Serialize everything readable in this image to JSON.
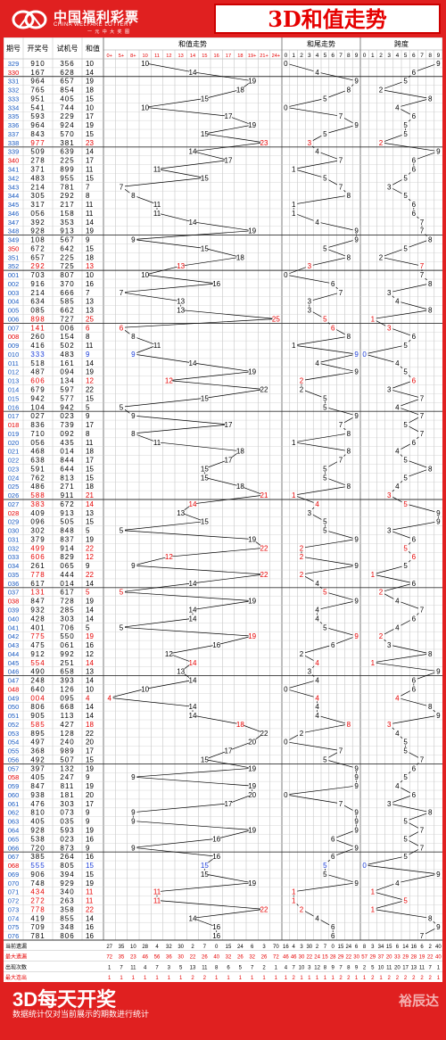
{
  "header": {
    "logo_cn": "中国福利彩票",
    "logo_en": "CHINA WELFARE LOTTERY",
    "logo_tag": "一 元 中 大 奖 图",
    "title": "3D和值走势"
  },
  "footer": {
    "slogan": "3D每天开奖",
    "note": "数据统计仅对当前展示的期数进行统计",
    "brand": "裕辰达"
  },
  "colors": {
    "red": "#e60000",
    "blue": "#1a3cd8",
    "accent": "#e02020"
  },
  "columns": {
    "issue": "期号",
    "winning": "开奖号",
    "trial": "试机号",
    "sum": "和值",
    "sum_trend": "和值走势",
    "tail_trend": "和尾走势",
    "span": "跨度"
  },
  "sum_buckets": [
    "0+",
    "5+",
    "8+",
    "10",
    "11",
    "12",
    "13",
    "14",
    "15",
    "16",
    "17",
    "18",
    "19+",
    "21+",
    "24+"
  ],
  "stats_labels": [
    "当前遗漏",
    "最大遗漏",
    "出现次数",
    "最大连出"
  ],
  "stats": {
    "sum": [
      [
        "27",
        "35",
        "10",
        "28",
        "4",
        "32",
        "30",
        "2",
        "7",
        "0",
        "15",
        "24",
        "6",
        "3",
        "70"
      ],
      [
        "72",
        "35",
        "23",
        "46",
        "56",
        "36",
        "30",
        "22",
        "26",
        "40",
        "32",
        "26",
        "32",
        "26",
        "72"
      ],
      [
        "1",
        "7",
        "11",
        "4",
        "7",
        "3",
        "5",
        "13",
        "11",
        "8",
        "6",
        "5",
        "7",
        "2",
        "1"
      ],
      [
        "1",
        "1",
        "1",
        "1",
        "1",
        "1",
        "1",
        "2",
        "2",
        "1",
        "1",
        "1",
        "1",
        "1",
        "1"
      ]
    ],
    "tail": [
      [
        "16",
        "4",
        "3",
        "30",
        "2",
        "7",
        "0",
        "15",
        "24",
        "6"
      ],
      [
        "46",
        "46",
        "30",
        "22",
        "24",
        "15",
        "28",
        "29",
        "22",
        "30"
      ],
      [
        "4",
        "7",
        "10",
        "3",
        "12",
        "8",
        "9",
        "7",
        "8",
        "9"
      ],
      [
        "1",
        "2",
        "1",
        "1",
        "1",
        "1",
        "1",
        "2",
        "2",
        "1"
      ]
    ],
    "span": [
      [
        "8",
        "3",
        "34",
        "15",
        "6",
        "14",
        "16",
        "6",
        "2",
        "40"
      ],
      [
        "57",
        "29",
        "37",
        "20",
        "33",
        "29",
        "28",
        "19",
        "22",
        "40"
      ],
      [
        "2",
        "5",
        "10",
        "11",
        "20",
        "17",
        "13",
        "11",
        "7",
        "1"
      ],
      [
        "1",
        "2",
        "1",
        "2",
        "2",
        "2",
        "2",
        "2",
        "2",
        "1"
      ]
    ]
  },
  "chart_data": {
    "type": "line",
    "title": "3D和值走势",
    "x_label": "期号",
    "series": [
      {
        "name": "和值走势",
        "unit": "和值"
      },
      {
        "name": "和尾走势",
        "unit": "和尾"
      },
      {
        "name": "跨度",
        "unit": "跨度"
      }
    ],
    "rows": [
      {
        "issue": "329",
        "draw": "910",
        "trial": "356",
        "sum": 10,
        "tail": 0,
        "span": 9
      },
      {
        "issue": "330",
        "draw": "167",
        "trial": "628",
        "sum": 14,
        "tail": 4,
        "span": 6
      },
      {
        "issue": "331",
        "draw": "964",
        "trial": "657",
        "sum": 19,
        "tail": 9,
        "span": 5
      },
      {
        "issue": "332",
        "draw": "765",
        "trial": "854",
        "sum": 18,
        "tail": 8,
        "span": 2
      },
      {
        "issue": "333",
        "draw": "951",
        "trial": "405",
        "sum": 15,
        "tail": 5,
        "span": 8
      },
      {
        "issue": "334",
        "draw": "541",
        "trial": "744",
        "sum": 10,
        "tail": 0,
        "span": 4
      },
      {
        "issue": "335",
        "draw": "593",
        "trial": "229",
        "sum": 17,
        "tail": 7,
        "span": 6
      },
      {
        "issue": "336",
        "draw": "964",
        "trial": "924",
        "sum": 19,
        "tail": 9,
        "span": 5
      },
      {
        "issue": "337",
        "draw": "843",
        "trial": "570",
        "sum": 15,
        "tail": 5,
        "span": 5
      },
      {
        "issue": "338",
        "draw": "977",
        "trial": "381",
        "sum": 23,
        "tail": 3,
        "span": 2
      },
      {
        "issue": "339",
        "draw": "509",
        "trial": "639",
        "sum": 14,
        "tail": 4,
        "span": 9
      },
      {
        "issue": "340",
        "draw": "278",
        "trial": "225",
        "sum": 17,
        "tail": 7,
        "span": 6
      },
      {
        "issue": "341",
        "draw": "371",
        "trial": "899",
        "sum": 11,
        "tail": 1,
        "span": 6
      },
      {
        "issue": "342",
        "draw": "483",
        "trial": "955",
        "sum": 15,
        "tail": 5,
        "span": 5
      },
      {
        "issue": "343",
        "draw": "214",
        "trial": "781",
        "sum": 7,
        "tail": 7,
        "span": 3
      },
      {
        "issue": "344",
        "draw": "305",
        "trial": "292",
        "sum": 8,
        "tail": 8,
        "span": 5
      },
      {
        "issue": "345",
        "draw": "317",
        "trial": "217",
        "sum": 11,
        "tail": 1,
        "span": 6
      },
      {
        "issue": "346",
        "draw": "056",
        "trial": "158",
        "sum": 11,
        "tail": 1,
        "span": 6
      },
      {
        "issue": "347",
        "draw": "392",
        "trial": "353",
        "sum": 14,
        "tail": 4,
        "span": 7
      },
      {
        "issue": "348",
        "draw": "928",
        "trial": "913",
        "sum": 19,
        "tail": 9,
        "span": 7
      },
      {
        "issue": "349",
        "draw": "108",
        "trial": "567",
        "sum": 9,
        "tail": 9,
        "span": 8
      },
      {
        "issue": "350",
        "draw": "672",
        "trial": "642",
        "sum": 15,
        "tail": 5,
        "span": 5
      },
      {
        "issue": "351",
        "draw": "657",
        "trial": "225",
        "sum": 18,
        "tail": 8,
        "span": 2
      },
      {
        "issue": "352",
        "draw": "292",
        "trial": "725",
        "sum": 13,
        "tail": 3,
        "span": 7
      },
      {
        "issue": "001",
        "draw": "703",
        "trial": "807",
        "sum": 10,
        "tail": 0,
        "span": 7
      },
      {
        "issue": "002",
        "draw": "916",
        "trial": "370",
        "sum": 16,
        "tail": 6,
        "span": 8
      },
      {
        "issue": "003",
        "draw": "214",
        "trial": "666",
        "sum": 7,
        "tail": 7,
        "span": 3
      },
      {
        "issue": "004",
        "draw": "634",
        "trial": "585",
        "sum": 13,
        "tail": 3,
        "span": 4
      },
      {
        "issue": "005",
        "draw": "085",
        "trial": "662",
        "sum": 13,
        "tail": 3,
        "span": 8
      },
      {
        "issue": "006",
        "draw": "898",
        "trial": "727",
        "sum": 25,
        "tail": 5,
        "span": 1
      },
      {
        "issue": "007",
        "draw": "141",
        "trial": "006",
        "sum": 6,
        "tail": 6,
        "span": 3
      },
      {
        "issue": "008",
        "draw": "260",
        "trial": "154",
        "sum": 8,
        "tail": 8,
        "span": 6
      },
      {
        "issue": "009",
        "draw": "416",
        "trial": "502",
        "sum": 11,
        "tail": 1,
        "span": 5
      },
      {
        "issue": "010",
        "draw": "333",
        "trial": "483",
        "sum": 9,
        "tail": 9,
        "span": 0
      },
      {
        "issue": "011",
        "draw": "518",
        "trial": "161",
        "sum": 14,
        "tail": 4,
        "span": 4
      },
      {
        "issue": "012",
        "draw": "487",
        "trial": "094",
        "sum": 19,
        "tail": 9,
        "span": 5
      },
      {
        "issue": "013",
        "draw": "606",
        "trial": "134",
        "sum": 12,
        "tail": 2,
        "span": 6
      },
      {
        "issue": "014",
        "draw": "679",
        "trial": "597",
        "sum": 22,
        "tail": 2,
        "span": 3
      },
      {
        "issue": "015",
        "draw": "942",
        "trial": "577",
        "sum": 15,
        "tail": 5,
        "span": 7
      },
      {
        "issue": "016",
        "draw": "104",
        "trial": "942",
        "sum": 5,
        "tail": 5,
        "span": 4
      },
      {
        "issue": "017",
        "draw": "027",
        "trial": "023",
        "sum": 9,
        "tail": 9,
        "span": 7
      },
      {
        "issue": "018",
        "draw": "836",
        "trial": "739",
        "sum": 17,
        "tail": 7,
        "span": 5
      },
      {
        "issue": "019",
        "draw": "710",
        "trial": "092",
        "sum": 8,
        "tail": 8,
        "span": 7
      },
      {
        "issue": "020",
        "draw": "056",
        "trial": "435",
        "sum": 11,
        "tail": 1,
        "span": 6
      },
      {
        "issue": "021",
        "draw": "468",
        "trial": "014",
        "sum": 18,
        "tail": 8,
        "span": 4
      },
      {
        "issue": "022",
        "draw": "638",
        "trial": "844",
        "sum": 17,
        "tail": 7,
        "span": 5
      },
      {
        "issue": "023",
        "draw": "591",
        "trial": "644",
        "sum": 15,
        "tail": 5,
        "span": 8
      },
      {
        "issue": "024",
        "draw": "762",
        "trial": "813",
        "sum": 15,
        "tail": 5,
        "span": 5
      },
      {
        "issue": "025",
        "draw": "486",
        "trial": "271",
        "sum": 18,
        "tail": 8,
        "span": 4
      },
      {
        "issue": "026",
        "draw": "588",
        "trial": "911",
        "sum": 21,
        "tail": 1,
        "span": 3
      },
      {
        "issue": "027",
        "draw": "383",
        "trial": "672",
        "sum": 14,
        "tail": 4,
        "span": 5
      },
      {
        "issue": "028",
        "draw": "409",
        "trial": "913",
        "sum": 13,
        "tail": 3,
        "span": 9
      },
      {
        "issue": "029",
        "draw": "096",
        "trial": "505",
        "sum": 15,
        "tail": 5,
        "span": 9
      },
      {
        "issue": "030",
        "draw": "302",
        "trial": "848",
        "sum": 5,
        "tail": 5,
        "span": 3
      },
      {
        "issue": "031",
        "draw": "379",
        "trial": "837",
        "sum": 19,
        "tail": 9,
        "span": 6
      },
      {
        "issue": "032",
        "draw": "499",
        "trial": "914",
        "sum": 22,
        "tail": 2,
        "span": 5
      },
      {
        "issue": "033",
        "draw": "606",
        "trial": "829",
        "sum": 12,
        "tail": 2,
        "span": 6
      },
      {
        "issue": "034",
        "draw": "261",
        "trial": "065",
        "sum": 9,
        "tail": 9,
        "span": 5
      },
      {
        "issue": "035",
        "draw": "778",
        "trial": "444",
        "sum": 22,
        "tail": 2,
        "span": 1
      },
      {
        "issue": "036",
        "draw": "617",
        "trial": "014",
        "sum": 14,
        "tail": 4,
        "span": 6
      },
      {
        "issue": "037",
        "draw": "131",
        "trial": "617",
        "sum": 5,
        "tail": 5,
        "span": 2
      },
      {
        "issue": "038",
        "draw": "847",
        "trial": "728",
        "sum": 19,
        "tail": 9,
        "span": 4
      },
      {
        "issue": "039",
        "draw": "932",
        "trial": "285",
        "sum": 14,
        "tail": 4,
        "span": 7
      },
      {
        "issue": "040",
        "draw": "428",
        "trial": "303",
        "sum": 14,
        "tail": 4,
        "span": 6
      },
      {
        "issue": "041",
        "draw": "401",
        "trial": "706",
        "sum": 5,
        "tail": 5,
        "span": 4
      },
      {
        "issue": "042",
        "draw": "775",
        "trial": "550",
        "sum": 19,
        "tail": 9,
        "span": 2
      },
      {
        "issue": "043",
        "draw": "475",
        "trial": "061",
        "sum": 16,
        "tail": 6,
        "span": 3
      },
      {
        "issue": "044",
        "draw": "912",
        "trial": "992",
        "sum": 12,
        "tail": 2,
        "span": 8
      },
      {
        "issue": "045",
        "draw": "554",
        "trial": "251",
        "sum": 14,
        "tail": 4,
        "span": 1
      },
      {
        "issue": "046",
        "draw": "490",
        "trial": "658",
        "sum": 13,
        "tail": 3,
        "span": 9
      },
      {
        "issue": "047",
        "draw": "248",
        "trial": "393",
        "sum": 14,
        "tail": 4,
        "span": 6
      },
      {
        "issue": "048",
        "draw": "640",
        "trial": "126",
        "sum": 10,
        "tail": 0,
        "span": 6
      },
      {
        "issue": "049",
        "draw": "004",
        "trial": "095",
        "sum": 4,
        "tail": 4,
        "span": 4
      },
      {
        "issue": "050",
        "draw": "806",
        "trial": "668",
        "sum": 14,
        "tail": 4,
        "span": 8
      },
      {
        "issue": "051",
        "draw": "905",
        "trial": "113",
        "sum": 14,
        "tail": 4,
        "span": 9
      },
      {
        "issue": "052",
        "draw": "585",
        "trial": "427",
        "sum": 18,
        "tail": 8,
        "span": 3
      },
      {
        "issue": "053",
        "draw": "895",
        "trial": "128",
        "sum": 22,
        "tail": 2,
        "span": 4
      },
      {
        "issue": "054",
        "draw": "497",
        "trial": "240",
        "sum": 20,
        "tail": 0,
        "span": 5
      },
      {
        "issue": "055",
        "draw": "368",
        "trial": "989",
        "sum": 17,
        "tail": 7,
        "span": 5
      },
      {
        "issue": "056",
        "draw": "492",
        "trial": "507",
        "sum": 15,
        "tail": 5,
        "span": 7
      },
      {
        "issue": "057",
        "draw": "397",
        "trial": "132",
        "sum": 19,
        "tail": 9,
        "span": 6
      },
      {
        "issue": "058",
        "draw": "405",
        "trial": "247",
        "sum": 9,
        "tail": 9,
        "span": 5
      },
      {
        "issue": "059",
        "draw": "847",
        "trial": "811",
        "sum": 19,
        "tail": 9,
        "span": 4
      },
      {
        "issue": "060",
        "draw": "938",
        "trial": "181",
        "sum": 20,
        "tail": 0,
        "span": 6
      },
      {
        "issue": "061",
        "draw": "476",
        "trial": "303",
        "sum": 17,
        "tail": 7,
        "span": 3
      },
      {
        "issue": "062",
        "draw": "810",
        "trial": "073",
        "sum": 9,
        "tail": 9,
        "span": 8
      },
      {
        "issue": "063",
        "draw": "405",
        "trial": "035",
        "sum": 9,
        "tail": 9,
        "span": 5
      },
      {
        "issue": "064",
        "draw": "928",
        "trial": "593",
        "sum": 19,
        "tail": 9,
        "span": 7
      },
      {
        "issue": "065",
        "draw": "538",
        "trial": "023",
        "sum": 16,
        "tail": 6,
        "span": 5
      },
      {
        "issue": "066",
        "draw": "720",
        "trial": "873",
        "sum": 9,
        "tail": 9,
        "span": 7
      },
      {
        "issue": "067",
        "draw": "385",
        "trial": "264",
        "sum": 16,
        "tail": 6,
        "span": 5
      },
      {
        "issue": "068",
        "draw": "555",
        "trial": "805",
        "sum": 15,
        "tail": 5,
        "span": 0
      },
      {
        "issue": "069",
        "draw": "906",
        "trial": "394",
        "sum": 15,
        "tail": 5,
        "span": 9
      },
      {
        "issue": "070",
        "draw": "748",
        "trial": "929",
        "sum": 19,
        "tail": 9,
        "span": 4
      },
      {
        "issue": "071",
        "draw": "434",
        "trial": "340",
        "sum": 11,
        "tail": 1,
        "span": 1
      },
      {
        "issue": "072",
        "draw": "272",
        "trial": "263",
        "sum": 11,
        "tail": 1,
        "span": 5
      },
      {
        "issue": "073",
        "draw": "778",
        "trial": "358",
        "sum": 22,
        "tail": 2,
        "span": 1
      },
      {
        "issue": "074",
        "draw": "419",
        "trial": "855",
        "sum": 14,
        "tail": 4,
        "span": 8
      },
      {
        "issue": "075",
        "draw": "709",
        "trial": "348",
        "sum": 16,
        "tail": 6,
        "span": 9
      },
      {
        "issue": "076",
        "draw": "781",
        "trial": "806",
        "sum": 16,
        "tail": 6,
        "span": 7
      }
    ]
  }
}
